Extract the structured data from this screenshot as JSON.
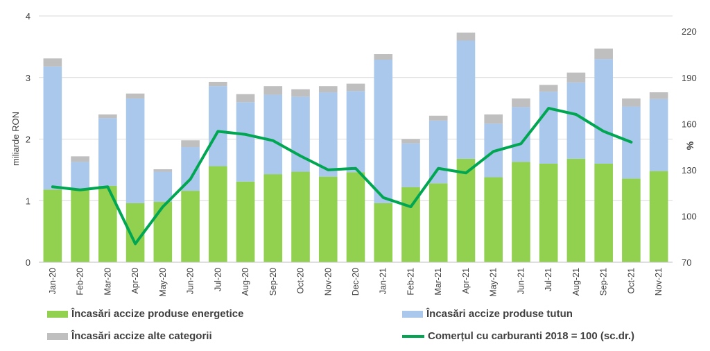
{
  "chart_data": {
    "type": "bar",
    "stacked": true,
    "categories": [
      "Jan-20",
      "Feb-20",
      "Mar-20",
      "Apr-20",
      "May-20",
      "Jun-20",
      "Jul-20",
      "Aug-20",
      "Sep-20",
      "Oct-20",
      "Nov-20",
      "Dec-20",
      "Jan-21",
      "Feb-21",
      "Mar-21",
      "Apr-21",
      "May-21",
      "Jun-21",
      "Jul-21",
      "Aug-21",
      "Sep-21",
      "Oct-21",
      "Nov-21"
    ],
    "ylabel": "miliarde RON",
    "ylim": [
      0,
      4
    ],
    "yticks": [
      "0",
      "1",
      "2",
      "3",
      "4"
    ],
    "y2label": "%",
    "y2lim": [
      70,
      230
    ],
    "y2ticks": [
      "70",
      "100",
      "130",
      "160",
      "190",
      "220"
    ],
    "grid": "horizontal",
    "legend_position": "bottom",
    "series": [
      {
        "name": "Încasări accize produse energetice",
        "kind": "bar",
        "color": "#92d050",
        "values": [
          1.18,
          1.17,
          1.24,
          0.96,
          0.98,
          1.16,
          1.56,
          1.31,
          1.43,
          1.47,
          1.39,
          1.46,
          0.96,
          1.22,
          1.28,
          1.68,
          1.38,
          1.63,
          1.6,
          1.68,
          1.6,
          1.36,
          1.48
        ]
      },
      {
        "name": "Încasări accize produse tutun",
        "kind": "bar",
        "color": "#a9c8ec",
        "values": [
          2.0,
          0.46,
          1.1,
          1.7,
          0.49,
          0.71,
          1.3,
          1.29,
          1.29,
          1.22,
          1.37,
          1.32,
          2.33,
          0.71,
          1.02,
          1.92,
          0.87,
          0.89,
          1.17,
          1.24,
          1.7,
          1.17,
          1.17
        ]
      },
      {
        "name": "Încasări accize alte categorii",
        "kind": "bar",
        "color": "#bfbfbf",
        "values": [
          0.13,
          0.09,
          0.06,
          0.08,
          0.04,
          0.11,
          0.07,
          0.13,
          0.14,
          0.12,
          0.1,
          0.12,
          0.09,
          0.07,
          0.08,
          0.13,
          0.15,
          0.14,
          0.11,
          0.16,
          0.17,
          0.13,
          0.11
        ]
      },
      {
        "name": "Comerțul cu carburanti 2018 = 100 (sc.dr.)",
        "kind": "line",
        "axis": "right",
        "color": "#00a651",
        "values": [
          119,
          117,
          119,
          82,
          106,
          124,
          155,
          153,
          149,
          139,
          130,
          131,
          112,
          106,
          131,
          128,
          142,
          147,
          170,
          166,
          155,
          148,
          null
        ]
      }
    ]
  }
}
